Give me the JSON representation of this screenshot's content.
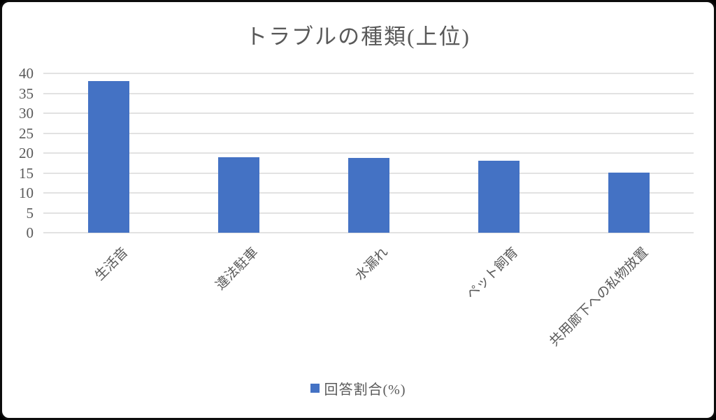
{
  "title": "トラブルの種類(上位)",
  "legend": {
    "label": "回答割合(%)",
    "marker_color": "#4472C4"
  },
  "colors": {
    "bar": "#4472C4",
    "gridline": "#E2E2E2",
    "text": "#595959",
    "plot_background": "#FFFFFF",
    "frame_border": "#0C0C0C"
  },
  "chart_data": {
    "type": "bar",
    "title": "トラブルの種類(上位)",
    "categories": [
      "生活音",
      "違法駐車",
      "水漏れ",
      "ペット飼育",
      "共用廊下への私物放置"
    ],
    "values": [
      38,
      19,
      18.7,
      18.1,
      15.1
    ],
    "series_name": "回答割合(%)",
    "xlabel": "",
    "ylabel": "",
    "ylim": [
      0,
      40
    ],
    "yticks": [
      0,
      5,
      10,
      15,
      20,
      25,
      30,
      35,
      40
    ],
    "grid": true,
    "legend_position": "bottom",
    "category_label_rotation_deg": 45
  }
}
